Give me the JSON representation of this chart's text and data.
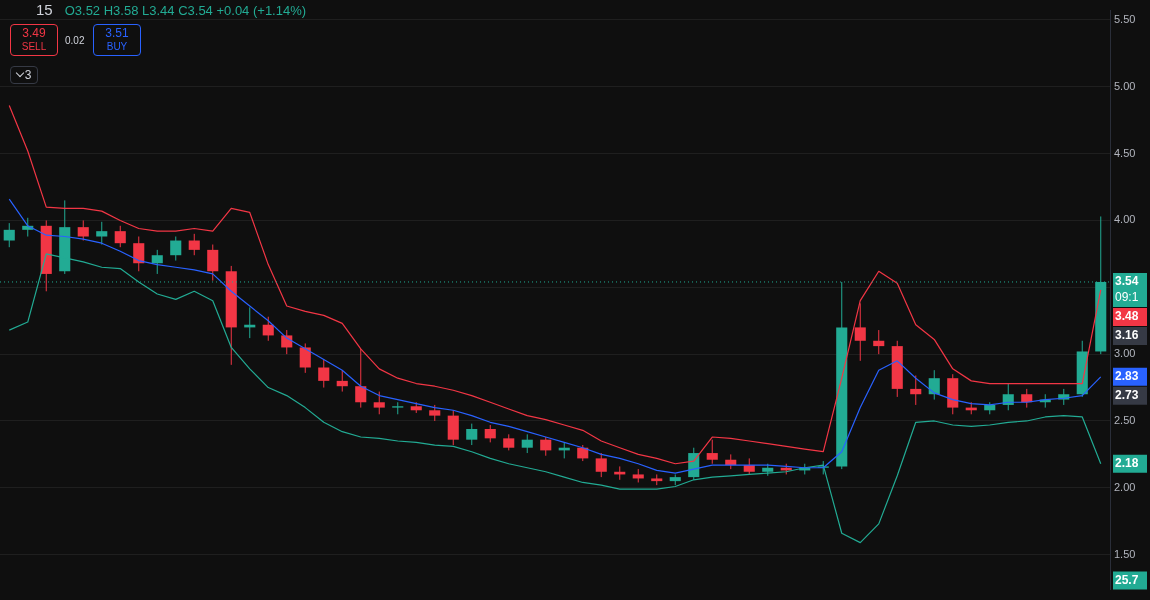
{
  "chart_data": {
    "type": "candlestick",
    "title": "15",
    "subtitle": "O3.52 H3.58 L3.44 C3.54 +0.04 (+1.14%)",
    "categories": [
      null,
      null,
      null,
      null,
      null,
      null,
      null,
      null,
      null,
      null,
      null,
      null,
      null,
      null,
      null,
      null,
      null,
      null,
      null,
      null,
      null,
      null,
      null,
      null,
      null,
      null,
      null,
      null,
      null,
      null,
      null,
      null,
      null,
      null,
      null,
      null,
      null,
      null,
      null,
      null,
      null,
      null,
      null,
      null,
      null,
      null,
      null,
      null,
      null,
      null,
      null,
      null,
      null,
      null,
      null,
      null,
      null,
      null,
      null,
      null
    ],
    "ohlc": [
      [
        3.85,
        3.98,
        3.8,
        3.93
      ],
      [
        3.93,
        4.02,
        3.88,
        3.96
      ],
      [
        3.96,
        4.0,
        3.47,
        3.6
      ],
      [
        3.62,
        4.15,
        3.6,
        3.95
      ],
      [
        3.95,
        4.0,
        3.85,
        3.88
      ],
      [
        3.88,
        3.99,
        3.82,
        3.92
      ],
      [
        3.92,
        3.96,
        3.8,
        3.83
      ],
      [
        3.83,
        3.88,
        3.62,
        3.68
      ],
      [
        3.68,
        3.78,
        3.6,
        3.74
      ],
      [
        3.74,
        3.88,
        3.7,
        3.85
      ],
      [
        3.85,
        3.9,
        3.74,
        3.78
      ],
      [
        3.78,
        3.82,
        3.55,
        3.62
      ],
      [
        3.62,
        3.66,
        2.92,
        3.2
      ],
      [
        3.2,
        3.35,
        3.12,
        3.22
      ],
      [
        3.22,
        3.28,
        3.1,
        3.14
      ],
      [
        3.14,
        3.18,
        3.0,
        3.05
      ],
      [
        3.05,
        3.08,
        2.86,
        2.9
      ],
      [
        2.9,
        2.96,
        2.75,
        2.8
      ],
      [
        2.8,
        2.88,
        2.72,
        2.76
      ],
      [
        2.76,
        3.04,
        2.6,
        2.64
      ],
      [
        2.64,
        2.72,
        2.55,
        2.6
      ],
      [
        2.6,
        2.64,
        2.55,
        2.61
      ],
      [
        2.61,
        2.64,
        2.56,
        2.58
      ],
      [
        2.58,
        2.62,
        2.5,
        2.54
      ],
      [
        2.54,
        2.58,
        2.32,
        2.36
      ],
      [
        2.36,
        2.48,
        2.32,
        2.44
      ],
      [
        2.44,
        2.47,
        2.34,
        2.37
      ],
      [
        2.37,
        2.4,
        2.28,
        2.3
      ],
      [
        2.3,
        2.4,
        2.26,
        2.36
      ],
      [
        2.36,
        2.38,
        2.24,
        2.28
      ],
      [
        2.28,
        2.34,
        2.22,
        2.3
      ],
      [
        2.3,
        2.32,
        2.2,
        2.22
      ],
      [
        2.22,
        2.26,
        2.08,
        2.12
      ],
      [
        2.12,
        2.16,
        2.06,
        2.1
      ],
      [
        2.1,
        2.14,
        2.04,
        2.07
      ],
      [
        2.07,
        2.1,
        2.02,
        2.05
      ],
      [
        2.05,
        2.1,
        2.02,
        2.08
      ],
      [
        2.08,
        2.3,
        2.06,
        2.26
      ],
      [
        2.26,
        2.36,
        2.18,
        2.21
      ],
      [
        2.21,
        2.25,
        2.14,
        2.17
      ],
      [
        2.17,
        2.22,
        2.1,
        2.12
      ],
      [
        2.12,
        2.18,
        2.09,
        2.15
      ],
      [
        2.15,
        2.18,
        2.1,
        2.13
      ],
      [
        2.13,
        2.18,
        2.1,
        2.15
      ],
      [
        2.15,
        2.2,
        2.1,
        2.16
      ],
      [
        2.16,
        3.54,
        2.14,
        3.2
      ],
      [
        3.2,
        3.38,
        2.95,
        3.1
      ],
      [
        3.1,
        3.18,
        3.0,
        3.06
      ],
      [
        3.06,
        3.1,
        2.68,
        2.74
      ],
      [
        2.74,
        2.84,
        2.62,
        2.7
      ],
      [
        2.7,
        2.88,
        2.66,
        2.82
      ],
      [
        2.82,
        2.85,
        2.55,
        2.6
      ],
      [
        2.6,
        2.64,
        2.55,
        2.58
      ],
      [
        2.58,
        2.64,
        2.55,
        2.62
      ],
      [
        2.62,
        2.78,
        2.58,
        2.7
      ],
      [
        2.7,
        2.74,
        2.6,
        2.64
      ],
      [
        2.64,
        2.7,
        2.6,
        2.66
      ],
      [
        2.66,
        2.74,
        2.62,
        2.7
      ],
      [
        2.7,
        3.1,
        2.68,
        3.02
      ],
      [
        3.02,
        4.03,
        3.0,
        3.54
      ]
    ],
    "colors": [
      "#22ab94",
      "#22ab94",
      "#f23645",
      "#22ab94",
      "#f23645",
      "#22ab94",
      "#f23645",
      "#f23645",
      "#22ab94",
      "#22ab94",
      "#f23645",
      "#f23645",
      "#f23645",
      "#22ab94",
      "#f23645",
      "#f23645",
      "#f23645",
      "#f23645",
      "#f23645",
      "#f23645",
      "#f23645",
      "#22ab94",
      "#f23645",
      "#f23645",
      "#f23645",
      "#22ab94",
      "#f23645",
      "#f23645",
      "#22ab94",
      "#f23645",
      "#22ab94",
      "#f23645",
      "#f23645",
      "#f23645",
      "#f23645",
      "#f23645",
      "#22ab94",
      "#22ab94",
      "#f23645",
      "#f23645",
      "#f23645",
      "#22ab94",
      "#f23645",
      "#22ab94",
      "#22ab94",
      "#22ab94",
      "#f23645",
      "#f23645",
      "#f23645",
      "#f23645",
      "#22ab94",
      "#f23645",
      "#f23645",
      "#22ab94",
      "#22ab94",
      "#f23645",
      "#22ab94",
      "#22ab94",
      "#22ab94",
      "#22ab94"
    ],
    "series": [
      {
        "type": "line",
        "color": "#f23645",
        "values": [
          4.86,
          4.52,
          4.1,
          4.09,
          4.09,
          4.07,
          4.0,
          3.94,
          3.92,
          3.92,
          3.94,
          3.92,
          4.09,
          4.06,
          3.67,
          3.36,
          3.32,
          3.29,
          3.23,
          3.04,
          2.89,
          2.82,
          2.78,
          2.76,
          2.73,
          2.69,
          2.64,
          2.59,
          2.54,
          2.51,
          2.47,
          2.43,
          2.35,
          2.3,
          2.25,
          2.22,
          2.18,
          2.2,
          2.38,
          2.37,
          2.35,
          2.33,
          2.31,
          2.29,
          2.27,
          2.82,
          3.4,
          3.62,
          3.53,
          3.22,
          3.11,
          2.89,
          2.8,
          2.78,
          2.78,
          2.78,
          2.78,
          2.78,
          2.78,
          3.48
        ],
        "value_labels": [
          null,
          null,
          null,
          null,
          null,
          null,
          null,
          null,
          null,
          null,
          null,
          null,
          null,
          null,
          null,
          null,
          null,
          null,
          null,
          null,
          null,
          null,
          null,
          null,
          null,
          null,
          null,
          null,
          null,
          null,
          null,
          null,
          null,
          null,
          null,
          null,
          null,
          null,
          null,
          null,
          null,
          null,
          null,
          null,
          null,
          null,
          null,
          null,
          null,
          null,
          null,
          null,
          null,
          null,
          null,
          null,
          null,
          null,
          null,
          "3.48"
        ]
      },
      {
        "type": "line",
        "color": "#2962ff",
        "values": [
          4.16,
          3.96,
          3.89,
          3.88,
          3.86,
          3.83,
          3.77,
          3.7,
          3.67,
          3.65,
          3.63,
          3.6,
          3.47,
          3.36,
          3.25,
          3.12,
          3.04,
          2.96,
          2.88,
          2.76,
          2.69,
          2.66,
          2.63,
          2.6,
          2.58,
          2.54,
          2.49,
          2.46,
          2.42,
          2.38,
          2.34,
          2.3,
          2.25,
          2.22,
          2.18,
          2.13,
          2.11,
          2.14,
          2.17,
          2.17,
          2.17,
          2.17,
          2.16,
          2.15,
          2.15,
          2.27,
          2.6,
          2.88,
          2.95,
          2.82,
          2.71,
          2.66,
          2.63,
          2.62,
          2.64,
          2.64,
          2.66,
          2.67,
          2.69,
          2.83
        ],
        "value_labels": [
          null,
          null,
          null,
          null,
          null,
          null,
          null,
          null,
          null,
          null,
          null,
          null,
          null,
          null,
          null,
          null,
          null,
          null,
          null,
          null,
          null,
          null,
          null,
          null,
          null,
          null,
          null,
          null,
          null,
          null,
          null,
          null,
          null,
          null,
          null,
          null,
          null,
          null,
          null,
          null,
          null,
          null,
          null,
          null,
          null,
          null,
          null,
          null,
          null,
          null,
          null,
          null,
          null,
          null,
          null,
          null,
          null,
          null,
          null,
          "2.83"
        ]
      },
      {
        "type": "line",
        "color": "#22ab94",
        "values": [
          3.18,
          3.24,
          3.75,
          3.72,
          3.69,
          3.65,
          3.64,
          3.54,
          3.45,
          3.41,
          3.47,
          3.4,
          3.05,
          2.89,
          2.75,
          2.69,
          2.6,
          2.49,
          2.42,
          2.38,
          2.37,
          2.35,
          2.34,
          2.32,
          2.31,
          2.27,
          2.22,
          2.18,
          2.15,
          2.12,
          2.08,
          2.04,
          2.02,
          1.99,
          1.99,
          1.99,
          2.01,
          2.06,
          2.08,
          2.09,
          2.1,
          2.11,
          2.12,
          2.15,
          2.17,
          1.66,
          1.59,
          1.73,
          2.09,
          2.49,
          2.5,
          2.47,
          2.46,
          2.47,
          2.49,
          2.5,
          2.53,
          2.54,
          2.53,
          2.18
        ],
        "value_labels": [
          null,
          null,
          null,
          null,
          null,
          null,
          null,
          null,
          null,
          null,
          null,
          null,
          null,
          null,
          null,
          null,
          null,
          null,
          null,
          null,
          null,
          null,
          null,
          null,
          null,
          null,
          null,
          null,
          null,
          null,
          null,
          null,
          null,
          null,
          null,
          null,
          null,
          null,
          null,
          null,
          null,
          null,
          null,
          null,
          null,
          null,
          null,
          null,
          null,
          null,
          null,
          null,
          null,
          null,
          null,
          null,
          null,
          null,
          null,
          "2.18"
        ]
      }
    ],
    "ylim": [
      1.24,
      5.57
    ],
    "yticks": [
      {
        "value": 1.5,
        "label": "1.50"
      },
      {
        "value": 2,
        "label": "2.00"
      },
      {
        "value": 2.5,
        "label": "2.50"
      },
      {
        "value": 3,
        "label": "3.00"
      },
      {
        "value": 3.5,
        "label": null
      },
      {
        "value": 4,
        "label": "4.00"
      },
      {
        "value": 4.5,
        "label": "4.50"
      },
      {
        "value": 5,
        "label": "5.00"
      },
      {
        "value": 5.5,
        "label": "5.50"
      }
    ],
    "grid": "y",
    "tick_labels": "y",
    "legend": false,
    "marker": "none",
    "line_style": "solid",
    "ref_lines": [
      {
        "axis": "y",
        "value": 3.54,
        "label": "3.54",
        "color": "#22ab94",
        "line_style": "dotted"
      }
    ],
    "annotations": [
      "3.49",
      "SELL",
      "0.02",
      "3.51",
      "BUY",
      "3",
      "09:1",
      "3.16",
      "2.73",
      "25.7"
    ]
  }
}
